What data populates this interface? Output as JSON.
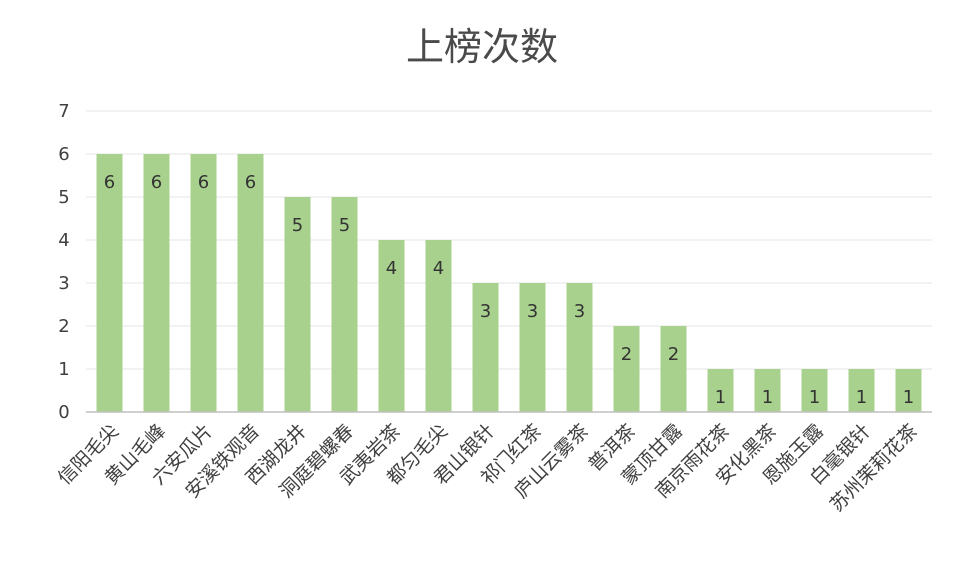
{
  "colors": {
    "bar": "#a9d18e",
    "grid": "#e6e6e6",
    "axis": "#bfbfbf",
    "background": "#ffffff"
  },
  "chart_data": {
    "type": "bar",
    "title": "上榜次数",
    "xlabel": "",
    "ylabel": "",
    "ylim": [
      0,
      7
    ],
    "yticks": [
      "0",
      "1",
      "2",
      "3",
      "4",
      "5",
      "6",
      "7"
    ],
    "grid": true,
    "legend": "none",
    "data_labels": true,
    "categories": [
      "信阳毛尖",
      "黄山毛峰",
      "六安瓜片",
      "安溪铁观音",
      "西湖龙井",
      "洞庭碧螺春",
      "武夷岩茶",
      "都匀毛尖",
      "君山银针",
      "祁门红茶",
      "庐山云雾茶",
      "普洱茶",
      "蒙顶甘露",
      "南京雨花茶",
      "安化黑茶",
      "恩施玉露",
      "白毫银针",
      "苏州茉莉花茶"
    ],
    "values": [
      6,
      6,
      6,
      6,
      5,
      5,
      4,
      4,
      3,
      3,
      3,
      2,
      2,
      1,
      1,
      1,
      1,
      1
    ]
  }
}
